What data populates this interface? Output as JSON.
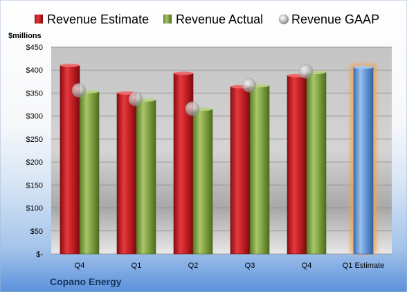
{
  "chart_data": {
    "type": "bar",
    "company": "Copano Energy",
    "ylabel": "$millions",
    "ylim": [
      0,
      450
    ],
    "y_ticks": [
      0,
      50,
      100,
      150,
      200,
      250,
      300,
      350,
      400,
      450
    ],
    "y_tick_labels": [
      "$-",
      "$50",
      "$100",
      "$150",
      "$200",
      "$250",
      "$300",
      "$350",
      "$400",
      "$450"
    ],
    "categories": [
      "Q4",
      "Q1",
      "Q2",
      "Q3",
      "Q4",
      "Q1 Estimate"
    ],
    "series": [
      {
        "name": "Revenue Estimate",
        "kind": "bar",
        "color": "#C0171D",
        "values": [
          410,
          350,
          393,
          364,
          388,
          null
        ]
      },
      {
        "name": "Revenue Actual",
        "kind": "bar",
        "color": "#7E9F3E",
        "values": [
          353,
          335,
          315,
          366,
          395,
          null
        ]
      },
      {
        "name": "Revenue GAAP",
        "kind": "marker",
        "color": "#B8B8B8",
        "values": [
          356,
          337,
          316,
          367,
          397,
          null
        ]
      }
    ],
    "estimate": {
      "category": "Q1 Estimate",
      "value": 406,
      "color": "#5B8FD0",
      "highlight": "#F5A04A"
    },
    "grid": true,
    "legend_position": "top"
  }
}
